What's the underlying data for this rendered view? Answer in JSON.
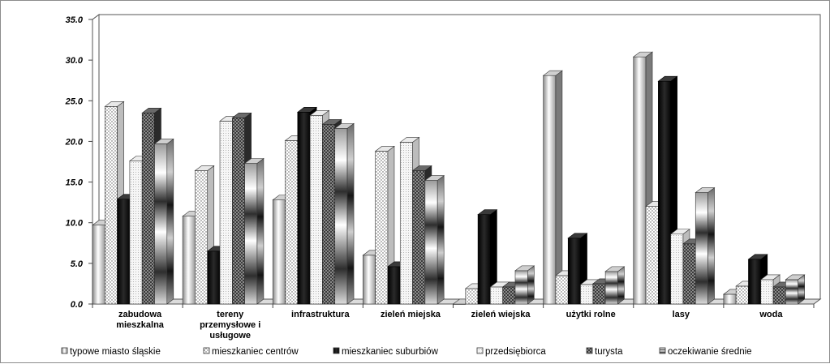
{
  "chart_data": {
    "type": "bar",
    "title": "",
    "xlabel": "",
    "ylabel": "",
    "ylim": [
      0,
      35
    ],
    "y_ticks": [
      "0.0",
      "5.0",
      "10.0",
      "15.0",
      "20.0",
      "25.0",
      "30.0",
      "35.0"
    ],
    "grid": "horizontal",
    "legend_position": "bottom",
    "style": "3d-clustered-column",
    "categories": [
      [
        "zabudowa",
        "mieszkalna"
      ],
      [
        "tereny",
        "przemysłowe i",
        "usługowe"
      ],
      [
        "infrastruktura"
      ],
      [
        "zieleń miejska"
      ],
      [
        "zieleń wiejska"
      ],
      [
        "użytki rolne"
      ],
      [
        "lasy"
      ],
      [
        "woda"
      ]
    ],
    "series": [
      {
        "name": "typowe miasto śląskie",
        "values": [
          9.7,
          10.8,
          12.8,
          6.0,
          0.0,
          28.1,
          30.4,
          1.2
        ]
      },
      {
        "name": "mieszkaniec centrów",
        "values": [
          24.3,
          16.4,
          20.1,
          18.8,
          1.9,
          3.5,
          12.0,
          2.2
        ]
      },
      {
        "name": "mieszkaniec suburbiów",
        "values": [
          12.9,
          6.5,
          23.6,
          4.6,
          11.0,
          8.1,
          27.4,
          5.5
        ]
      },
      {
        "name": "przedsiębiorca",
        "values": [
          17.6,
          22.5,
          23.2,
          19.9,
          2.1,
          2.4,
          8.6,
          3.0
        ]
      },
      {
        "name": "turysta",
        "values": [
          23.5,
          22.9,
          22.1,
          16.4,
          2.1,
          2.5,
          7.4,
          2.1
        ]
      },
      {
        "name": "oczekiwanie średnie",
        "values": [
          19.7,
          17.3,
          21.6,
          15.2,
          4.1,
          4.0,
          13.7,
          3.0
        ]
      }
    ],
    "colors": {
      "typowe miasto śląskie": "#f2f2f2",
      "mieszkaniec centrów": "#ffffff",
      "mieszkaniec suburbiów": "#111111",
      "przedsiębiorca": "#f4f4f4",
      "turysta": "#555555",
      "oczekiwanie średnie": "#b8b8b8"
    }
  }
}
